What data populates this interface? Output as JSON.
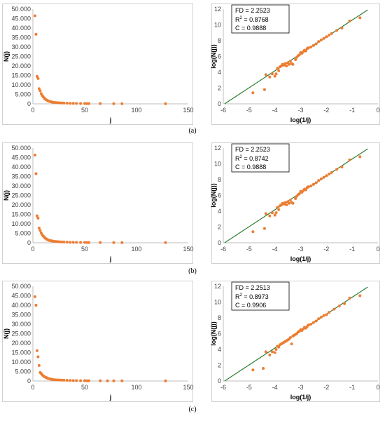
{
  "chart_data": [
    {
      "type": "scatter",
      "panel": "a",
      "side": "left",
      "xlabel": "j",
      "ylabel": "N(j)",
      "xlim": [
        0,
        150
      ],
      "ylim": [
        0,
        50
      ],
      "xticks": [
        "0",
        "50",
        "100",
        "150"
      ],
      "yticks": [
        "0",
        "5.000",
        "10.000",
        "15.000",
        "20.000",
        "25.000",
        "30.000",
        "35.000",
        "40.000",
        "45.000",
        "50.000"
      ],
      "points": [
        [
          2,
          46.5
        ],
        [
          3,
          36.7
        ],
        [
          4,
          14.5
        ],
        [
          5,
          13.4
        ],
        [
          6,
          8
        ],
        [
          7,
          6.9
        ],
        [
          8,
          5.4
        ],
        [
          9,
          4.4
        ],
        [
          10,
          3.7
        ],
        [
          11,
          3
        ],
        [
          12,
          2.5
        ],
        [
          13,
          2.1
        ],
        [
          14,
          1.8
        ],
        [
          15,
          1.5
        ],
        [
          16,
          1.3
        ],
        [
          17,
          1.1
        ],
        [
          18,
          1
        ],
        [
          19,
          0.9
        ],
        [
          20,
          0.8
        ],
        [
          22,
          0.7
        ],
        [
          24,
          0.6
        ],
        [
          26,
          0.5
        ],
        [
          28,
          0.45
        ],
        [
          30,
          0.4
        ],
        [
          33,
          0.35
        ],
        [
          36,
          0.3
        ],
        [
          39,
          0.25
        ],
        [
          42,
          0.22
        ],
        [
          46,
          0.2
        ],
        [
          50,
          0.18
        ],
        [
          52,
          0.16
        ],
        [
          54,
          0.15
        ],
        [
          65,
          0.12
        ],
        [
          78,
          0.1
        ],
        [
          86,
          0.09
        ],
        [
          128,
          0.07
        ]
      ]
    },
    {
      "type": "scatter",
      "panel": "a",
      "side": "right",
      "xlabel": "log(1/j)",
      "ylabel": "log(N(j))",
      "xlim": [
        -6,
        0
      ],
      "ylim": [
        0,
        12
      ],
      "xticks": [
        "-6",
        "-5",
        "-4",
        "-3",
        "-2",
        "-1",
        "0"
      ],
      "yticks": [
        "0",
        "2",
        "4",
        "6",
        "8",
        "10",
        "12"
      ],
      "annotation": [
        "FD = 2.2523",
        "R",
        "2",
        " = 0.8768",
        "C = 0.9888"
      ],
      "fit_line": [
        [
          -5.95,
          0
        ],
        [
          -0.4,
          11.9
        ]
      ],
      "points": [
        [
          -4.85,
          1.4
        ],
        [
          -4.4,
          1.8
        ],
        [
          -4.35,
          3.7
        ],
        [
          -4.2,
          3.4
        ],
        [
          -4.1,
          3.8
        ],
        [
          -4,
          3.5
        ],
        [
          -3.95,
          3.8
        ],
        [
          -3.9,
          4.5
        ],
        [
          -3.85,
          4.2
        ],
        [
          -3.8,
          4.7
        ],
        [
          -3.75,
          4.8
        ],
        [
          -3.7,
          5
        ],
        [
          -3.65,
          4.9
        ],
        [
          -3.6,
          5.1
        ],
        [
          -3.55,
          4.8
        ],
        [
          -3.5,
          5.2
        ],
        [
          -3.45,
          5
        ],
        [
          -3.4,
          5.4
        ],
        [
          -3.35,
          5.1
        ],
        [
          -3.3,
          5
        ],
        [
          -3.2,
          5.6
        ],
        [
          -3.15,
          5.9
        ],
        [
          -3.1,
          6.1
        ],
        [
          -3.05,
          6.2
        ],
        [
          -3,
          6.5
        ],
        [
          -2.95,
          6.4
        ],
        [
          -2.9,
          6.6
        ],
        [
          -2.85,
          6.8
        ],
        [
          -2.8,
          6.7
        ],
        [
          -2.75,
          7
        ],
        [
          -2.7,
          7.1
        ],
        [
          -2.6,
          7.2
        ],
        [
          -2.5,
          7.4
        ],
        [
          -2.4,
          7.6
        ],
        [
          -2.3,
          7.9
        ],
        [
          -2.2,
          8.1
        ],
        [
          -2.1,
          8.3
        ],
        [
          -2,
          8.5
        ],
        [
          -1.9,
          8.7
        ],
        [
          -1.8,
          8.9
        ],
        [
          -1.6,
          9.3
        ],
        [
          -1.4,
          9.6
        ],
        [
          -1.1,
          10.5
        ],
        [
          -0.7,
          10.9
        ]
      ]
    },
    {
      "type": "scatter",
      "panel": "b",
      "side": "left",
      "xlabel": "j",
      "ylabel": "N(j)",
      "xlim": [
        0,
        150
      ],
      "ylim": [
        0,
        50
      ],
      "xticks": [
        "0",
        "50",
        "100",
        "150"
      ],
      "yticks": [
        "0",
        "5.000",
        "10.000",
        "15.000",
        "20.000",
        "25.000",
        "30.000",
        "35.000",
        "40.000",
        "45.000",
        "50.000"
      ],
      "points": [
        [
          2,
          46.3
        ],
        [
          3,
          36.5
        ],
        [
          4,
          14.2
        ],
        [
          5,
          13
        ],
        [
          6,
          7.8
        ],
        [
          7,
          6.5
        ],
        [
          8,
          5.2
        ],
        [
          9,
          4.2
        ],
        [
          10,
          3.5
        ],
        [
          11,
          2.9
        ],
        [
          12,
          2.4
        ],
        [
          13,
          2
        ],
        [
          14,
          1.7
        ],
        [
          15,
          1.4
        ],
        [
          16,
          1.2
        ],
        [
          17,
          1.1
        ],
        [
          18,
          1
        ],
        [
          19,
          0.9
        ],
        [
          20,
          0.8
        ],
        [
          22,
          0.7
        ],
        [
          24,
          0.6
        ],
        [
          26,
          0.5
        ],
        [
          28,
          0.45
        ],
        [
          30,
          0.4
        ],
        [
          33,
          0.35
        ],
        [
          36,
          0.3
        ],
        [
          39,
          0.25
        ],
        [
          42,
          0.22
        ],
        [
          46,
          0.2
        ],
        [
          50,
          0.18
        ],
        [
          52,
          0.16
        ],
        [
          54,
          0.15
        ],
        [
          65,
          0.12
        ],
        [
          78,
          0.1
        ],
        [
          86,
          0.09
        ],
        [
          128,
          0.07
        ]
      ]
    },
    {
      "type": "scatter",
      "panel": "b",
      "side": "right",
      "xlabel": "log(1/j)",
      "ylabel": "log(N(j))",
      "xlim": [
        -6,
        0
      ],
      "ylim": [
        0,
        12
      ],
      "xticks": [
        "-6",
        "-5",
        "-4",
        "-3",
        "-2",
        "-1",
        "0"
      ],
      "yticks": [
        "0",
        "2",
        "4",
        "6",
        "8",
        "10",
        "12"
      ],
      "annotation": [
        "FD = 2.2523",
        "R",
        "2",
        " = 0.8742",
        "C = 0.9888"
      ],
      "fit_line": [
        [
          -5.95,
          0
        ],
        [
          -0.4,
          11.9
        ]
      ],
      "points": [
        [
          -4.85,
          1.4
        ],
        [
          -4.4,
          1.8
        ],
        [
          -4.35,
          3.7
        ],
        [
          -4.2,
          3.4
        ],
        [
          -4.1,
          3.8
        ],
        [
          -4,
          3.5
        ],
        [
          -3.95,
          3.8
        ],
        [
          -3.9,
          4.5
        ],
        [
          -3.85,
          4.2
        ],
        [
          -3.8,
          4.7
        ],
        [
          -3.75,
          4.8
        ],
        [
          -3.7,
          5
        ],
        [
          -3.65,
          4.9
        ],
        [
          -3.6,
          5.1
        ],
        [
          -3.55,
          4.8
        ],
        [
          -3.5,
          5.2
        ],
        [
          -3.45,
          5
        ],
        [
          -3.4,
          5.4
        ],
        [
          -3.35,
          5.1
        ],
        [
          -3.3,
          5
        ],
        [
          -3.2,
          5.6
        ],
        [
          -3.15,
          5.9
        ],
        [
          -3.1,
          6.1
        ],
        [
          -3.05,
          6.2
        ],
        [
          -3,
          6.5
        ],
        [
          -2.95,
          6.4
        ],
        [
          -2.9,
          6.6
        ],
        [
          -2.85,
          6.8
        ],
        [
          -2.8,
          6.7
        ],
        [
          -2.75,
          7
        ],
        [
          -2.7,
          7.1
        ],
        [
          -2.6,
          7.2
        ],
        [
          -2.5,
          7.4
        ],
        [
          -2.4,
          7.6
        ],
        [
          -2.3,
          7.9
        ],
        [
          -2.2,
          8.1
        ],
        [
          -2.1,
          8.3
        ],
        [
          -2,
          8.5
        ],
        [
          -1.9,
          8.7
        ],
        [
          -1.8,
          8.9
        ],
        [
          -1.6,
          9.3
        ],
        [
          -1.4,
          9.6
        ],
        [
          -1.1,
          10.5
        ],
        [
          -0.7,
          10.9
        ]
      ]
    },
    {
      "type": "scatter",
      "panel": "c",
      "side": "left",
      "xlabel": "j",
      "ylabel": "N(j)",
      "xlim": [
        0,
        150
      ],
      "ylim": [
        0,
        50
      ],
      "xticks": [
        "0",
        "50",
        "100",
        "150"
      ],
      "yticks": [
        "0",
        "5.000",
        "10.000",
        "15.000",
        "20.000",
        "25.000",
        "30.000",
        "35.000",
        "40.000",
        "45.000",
        "50.000"
      ],
      "points": [
        [
          2,
          44.5
        ],
        [
          3,
          40
        ],
        [
          4,
          16
        ],
        [
          5,
          12.8
        ],
        [
          6,
          8.2
        ],
        [
          7,
          4.5
        ],
        [
          8,
          4
        ],
        [
          9,
          3.2
        ],
        [
          10,
          2.8
        ],
        [
          11,
          2.3
        ],
        [
          12,
          2
        ],
        [
          13,
          1.8
        ],
        [
          14,
          1.5
        ],
        [
          15,
          1.3
        ],
        [
          16,
          1.2
        ],
        [
          17,
          1
        ],
        [
          18,
          0.9
        ],
        [
          19,
          0.8
        ],
        [
          20,
          0.7
        ],
        [
          22,
          0.6
        ],
        [
          24,
          0.55
        ],
        [
          26,
          0.5
        ],
        [
          28,
          0.45
        ],
        [
          30,
          0.4
        ],
        [
          33,
          0.35
        ],
        [
          36,
          0.3
        ],
        [
          39,
          0.25
        ],
        [
          42,
          0.22
        ],
        [
          46,
          0.2
        ],
        [
          50,
          0.18
        ],
        [
          52,
          0.16
        ],
        [
          54,
          0.15
        ],
        [
          65,
          0.12
        ],
        [
          72,
          0.11
        ],
        [
          78,
          0.1
        ],
        [
          86,
          0.09
        ],
        [
          128,
          0.07
        ]
      ]
    },
    {
      "type": "scatter",
      "panel": "c",
      "side": "right",
      "xlabel": "log(1/j)",
      "ylabel": "log(N(j))",
      "xlim": [
        -6,
        0
      ],
      "ylim": [
        0,
        12
      ],
      "xticks": [
        "-6",
        "-5",
        "-4",
        "-3",
        "-2",
        "-1",
        "0"
      ],
      "yticks": [
        "0",
        "2",
        "4",
        "6",
        "8",
        "10",
        "12"
      ],
      "annotation": [
        "FD = 2.2513",
        "R",
        "2",
        " = 0.8973",
        "C = 0.9906"
      ],
      "fit_line": [
        [
          -5.95,
          0
        ],
        [
          -0.4,
          11.9
        ]
      ],
      "points": [
        [
          -4.85,
          1.4
        ],
        [
          -4.45,
          1.6
        ],
        [
          -4.35,
          3.7
        ],
        [
          -4.2,
          3.3
        ],
        [
          -4.1,
          3.7
        ],
        [
          -4,
          3.6
        ],
        [
          -3.95,
          4
        ],
        [
          -3.9,
          4.4
        ],
        [
          -3.85,
          4.3
        ],
        [
          -3.8,
          4.6
        ],
        [
          -3.75,
          4.7
        ],
        [
          -3.7,
          4.8
        ],
        [
          -3.65,
          4.9
        ],
        [
          -3.6,
          5
        ],
        [
          -3.55,
          5.1
        ],
        [
          -3.5,
          5.2
        ],
        [
          -3.45,
          5.3
        ],
        [
          -3.4,
          5.5
        ],
        [
          -3.35,
          4.7
        ],
        [
          -3.3,
          5.7
        ],
        [
          -3.25,
          5.8
        ],
        [
          -3.2,
          5.9
        ],
        [
          -3.15,
          6
        ],
        [
          -3.1,
          6.2
        ],
        [
          -3.05,
          6.3
        ],
        [
          -3,
          6.5
        ],
        [
          -2.95,
          6.4
        ],
        [
          -2.9,
          6.6
        ],
        [
          -2.85,
          6.8
        ],
        [
          -2.8,
          6.7
        ],
        [
          -2.75,
          6.9
        ],
        [
          -2.7,
          7.1
        ],
        [
          -2.6,
          7.2
        ],
        [
          -2.5,
          7.4
        ],
        [
          -2.4,
          7.6
        ],
        [
          -2.3,
          7.9
        ],
        [
          -2.2,
          8.1
        ],
        [
          -2.1,
          8.3
        ],
        [
          -2,
          8.4
        ],
        [
          -1.9,
          8.7
        ],
        [
          -1.7,
          9.1
        ],
        [
          -1.5,
          9.5
        ],
        [
          -1.3,
          9.8
        ],
        [
          -1.1,
          10.5
        ],
        [
          -0.7,
          10.8
        ]
      ]
    }
  ],
  "panel_labels": [
    "(a)",
    "(b)",
    "(c)"
  ],
  "colors": {
    "marker": "#ed7d31",
    "fit_line": "#2e7d32",
    "axis": "#bfbfbf",
    "frame": "#d0d0d0",
    "text": "#000000"
  }
}
